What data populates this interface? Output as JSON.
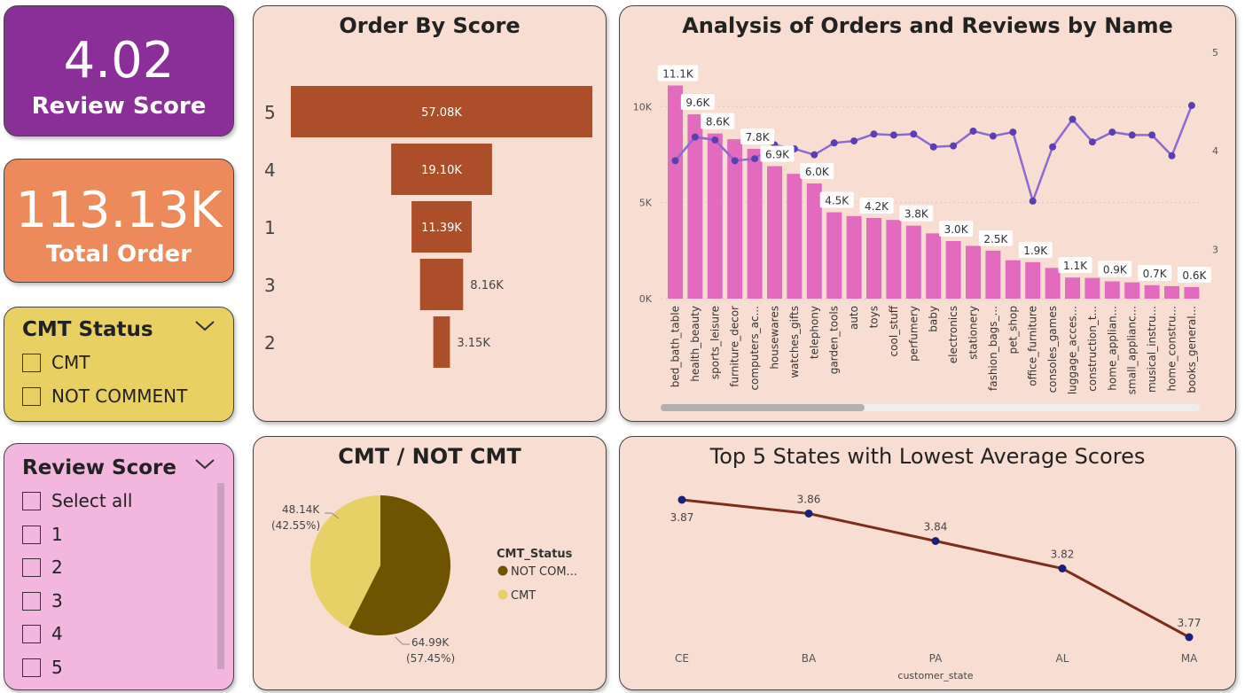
{
  "kpi_review": {
    "value": "4.02",
    "label": "Review Score",
    "color": "#8a2f98"
  },
  "kpi_orders": {
    "value": "113.13K",
    "label": "Total Order",
    "color": "#ec8a5b"
  },
  "cmt_slicer": {
    "title": "CMT Status",
    "options": [
      "CMT",
      "NOT COMMENT"
    ],
    "color": "#e8d062"
  },
  "score_slicer": {
    "title": "Review Score",
    "options": [
      "Select all",
      "1",
      "2",
      "3",
      "4",
      "5"
    ],
    "color": "#f3b6de"
  },
  "funnel": {
    "title": "Order By Score",
    "bar_color": "#ad4e2b",
    "chart_data": {
      "type": "bar",
      "categories": [
        "5",
        "4",
        "1",
        "3",
        "2"
      ],
      "values": [
        57080,
        19100,
        11390,
        8160,
        3150
      ],
      "data_labels": [
        "57.08K",
        "19.10K",
        "11.39K",
        "8.16K",
        "3.15K"
      ]
    }
  },
  "combo": {
    "title": "Analysis of Orders and Reviews by Name",
    "bar_color": "#e36bbf",
    "line_color": "#8b6ad2",
    "chart_data": {
      "type": "bar",
      "categories": [
        "bed_bath_table",
        "health_beauty",
        "sports_leisure",
        "furniture_decor",
        "computers_ac...",
        "housewares",
        "watches_gifts",
        "telephony",
        "garden_tools",
        "auto",
        "toys",
        "cool_stuff",
        "perfumery",
        "baby",
        "electronics",
        "stationery",
        "fashion_bags_...",
        "pet_shop",
        "office_furniture",
        "consoles_games",
        "luggage_acces...",
        "construction_t...",
        "home_applian...",
        "small_applianc...",
        "musical_instru...",
        "home_constru...",
        "books_general..."
      ],
      "series": [
        {
          "values": [
            11100,
            9600,
            8600,
            8300,
            7800,
            6900,
            6500,
            6000,
            4500,
            4300,
            4200,
            4100,
            3800,
            3400,
            3000,
            2750,
            2500,
            2000,
            1900,
            1600,
            1100,
            1080,
            900,
            850,
            700,
            650,
            600
          ]
        },
        {
          "values": [
            3.9,
            4.14,
            4.11,
            3.9,
            3.92,
            4.06,
            4.02,
            3.96,
            4.08,
            4.1,
            4.17,
            4.16,
            4.17,
            4.04,
            4.05,
            4.2,
            4.15,
            4.19,
            3.49,
            4.04,
            4.32,
            4.09,
            4.19,
            4.16,
            4.16,
            3.95,
            4.46
          ]
        }
      ],
      "bar_labels": {
        "0": "11.1K",
        "1": "9.6K",
        "2": "8.6K",
        "4": "7.8K",
        "5": "6.9K",
        "7": "6.0K",
        "8": "4.5K",
        "10": "4.2K",
        "12": "3.8K",
        "14": "3.0K",
        "16": "2.5K",
        "18": "1.9K",
        "20": "1.1K",
        "22": "0.9K",
        "24": "0.7K",
        "26": "0.6K"
      },
      "ylim": [
        0,
        12000
      ],
      "y_ticks": [
        "0K",
        "5K",
        "10K"
      ],
      "y2lim": [
        2.5,
        5
      ],
      "y2_ticks": [
        "3",
        "4",
        "5"
      ]
    }
  },
  "pie": {
    "title": "CMT / NOT CMT",
    "legend_title": "CMT_Status",
    "chart_data": {
      "type": "pie",
      "labels": [
        "NOT COM...",
        "CMT"
      ],
      "values": [
        64990,
        48140
      ],
      "colors": [
        "#6e5400",
        "#e7d066"
      ],
      "data_labels": [
        [
          "64.99K",
          "(57.45%)"
        ],
        [
          "48.14K",
          "(42.55%)"
        ]
      ]
    }
  },
  "line": {
    "title": "Top 5 States with Lowest Average Scores",
    "line_color": "#7b2e1c",
    "point_color": "#18207a",
    "chart_data": {
      "type": "line",
      "categories": [
        "CE",
        "BA",
        "PA",
        "AL",
        "MA"
      ],
      "values": [
        3.87,
        3.86,
        3.84,
        3.82,
        3.77
      ],
      "data_labels": [
        "3.87",
        "3.86",
        "3.84",
        "3.82",
        "3.77"
      ],
      "xlabel": "customer_state"
    }
  }
}
